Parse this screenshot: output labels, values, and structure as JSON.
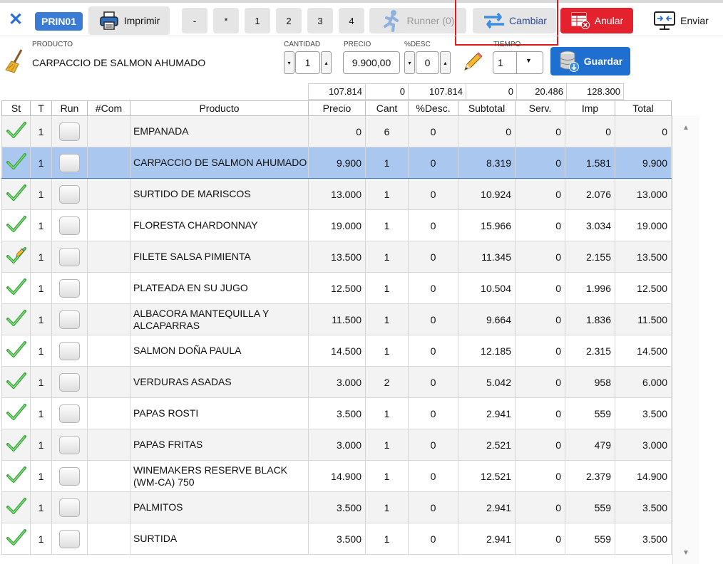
{
  "header": {
    "badge": "PRIN01",
    "print_label": "Imprimir",
    "num_buttons": [
      "-",
      "*",
      "1",
      "2",
      "3",
      "4"
    ],
    "runner_label": "Runner (0)",
    "cambiar_label": "Cambiar",
    "anular_label": "Anular",
    "enviar_label": "Enviar"
  },
  "editor": {
    "product_label": "PRODUCTO",
    "product_value": "CARPACCIO DE SALMON AHUMADO",
    "cantidad_label": "CANTIDAD",
    "cantidad_value": "1",
    "precio_label": "PRECIO",
    "precio_value": "9.900,00",
    "desc_label": "%DESC",
    "desc_value": "0",
    "tiempo_label": "TIEMPO",
    "tiempo_value": "1",
    "guardar_label": "Guardar"
  },
  "totals": [
    "107.814",
    "0",
    "107.814",
    "0",
    "20.486",
    "128.300"
  ],
  "columns": [
    "St",
    "T",
    "Run",
    "#Com",
    "Producto",
    "Precio",
    "Cant",
    "%Desc.",
    "Subtotal",
    "Serv.",
    "Imp",
    "Total"
  ],
  "rows": [
    {
      "t": "1",
      "producto": "EMPANADA",
      "precio": "0",
      "cant": "6",
      "desc": "0",
      "subtotal": "0",
      "serv": "0",
      "imp": "0",
      "total": "0"
    },
    {
      "t": "1",
      "producto": "CARPACCIO DE SALMON AHUMADO",
      "precio": "9.900",
      "cant": "1",
      "desc": "0",
      "subtotal": "8.319",
      "serv": "0",
      "imp": "1.581",
      "total": "9.900"
    },
    {
      "t": "1",
      "producto": "SURTIDO DE MARISCOS",
      "precio": "13.000",
      "cant": "1",
      "desc": "0",
      "subtotal": "10.924",
      "serv": "0",
      "imp": "2.076",
      "total": "13.000"
    },
    {
      "t": "1",
      "producto": "FLORESTA CHARDONNAY",
      "precio": "19.000",
      "cant": "1",
      "desc": "0",
      "subtotal": "15.966",
      "serv": "0",
      "imp": "3.034",
      "total": "19.000"
    },
    {
      "t": "1",
      "producto": "FILETE SALSA PIMIENTA",
      "precio": "13.500",
      "cant": "1",
      "desc": "0",
      "subtotal": "11.345",
      "serv": "0",
      "imp": "2.155",
      "total": "13.500"
    },
    {
      "t": "1",
      "producto": "PLATEADA EN SU JUGO",
      "precio": "12.500",
      "cant": "1",
      "desc": "0",
      "subtotal": "10.504",
      "serv": "0",
      "imp": "1.996",
      "total": "12.500"
    },
    {
      "t": "1",
      "producto": "ALBACORA MANTEQUILLA Y ALCAPARRAS",
      "precio": "11.500",
      "cant": "1",
      "desc": "0",
      "subtotal": "9.664",
      "serv": "0",
      "imp": "1.836",
      "total": "11.500"
    },
    {
      "t": "1",
      "producto": "SALMON DOÑA PAULA",
      "precio": "14.500",
      "cant": "1",
      "desc": "0",
      "subtotal": "12.185",
      "serv": "0",
      "imp": "2.315",
      "total": "14.500"
    },
    {
      "t": "1",
      "producto": "VERDURAS ASADAS",
      "precio": "3.000",
      "cant": "2",
      "desc": "0",
      "subtotal": "5.042",
      "serv": "0",
      "imp": "958",
      "total": "6.000"
    },
    {
      "t": "1",
      "producto": "PAPAS ROSTI",
      "precio": "3.500",
      "cant": "1",
      "desc": "0",
      "subtotal": "2.941",
      "serv": "0",
      "imp": "559",
      "total": "3.500"
    },
    {
      "t": "1",
      "producto": "PAPAS FRITAS",
      "precio": "3.000",
      "cant": "1",
      "desc": "0",
      "subtotal": "2.521",
      "serv": "0",
      "imp": "479",
      "total": "3.000"
    },
    {
      "t": "1",
      "producto": "WINEMAKERS RESERVE BLACK (WM-CA) 750",
      "precio": "14.900",
      "cant": "1",
      "desc": "0",
      "subtotal": "12.521",
      "serv": "0",
      "imp": "2.379",
      "total": "14.900"
    },
    {
      "t": "1",
      "producto": "PALMITOS",
      "precio": "3.500",
      "cant": "1",
      "desc": "0",
      "subtotal": "2.941",
      "serv": "0",
      "imp": "559",
      "total": "3.500"
    },
    {
      "t": "1",
      "producto": "SURTIDA",
      "precio": "3.500",
      "cant": "1",
      "desc": "0",
      "subtotal": "2.941",
      "serv": "0",
      "imp": "559",
      "total": "3.500"
    }
  ],
  "colors": {
    "accent": "#2a6fd6",
    "danger": "#e3222e",
    "selected_row": "#a9c7ef",
    "check": "#3aa83a"
  }
}
